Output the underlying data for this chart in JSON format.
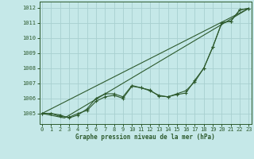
{
  "background_color": "#c5e8e8",
  "grid_color": "#a8d0d0",
  "line_color": "#2d5a2d",
  "text_color": "#2d5a2d",
  "xlabel": "Graphe pression niveau de la mer (hPa)",
  "xlim": [
    -0.3,
    23.3
  ],
  "ylim": [
    1004.3,
    1012.4
  ],
  "yticks": [
    1005,
    1006,
    1007,
    1008,
    1009,
    1010,
    1011,
    1012
  ],
  "xticks": [
    0,
    1,
    2,
    3,
    4,
    5,
    6,
    7,
    8,
    9,
    10,
    11,
    12,
    13,
    14,
    15,
    16,
    17,
    18,
    19,
    20,
    21,
    22,
    23
  ],
  "series1_x": [
    0,
    1,
    2,
    3,
    4,
    5,
    6,
    7,
    8,
    9,
    10,
    11,
    12,
    13,
    14,
    15,
    16,
    17,
    18,
    19,
    20,
    21,
    22,
    23
  ],
  "series1_y": [
    1005.0,
    1005.0,
    1004.8,
    1004.75,
    1005.0,
    1005.2,
    1005.8,
    1006.1,
    1006.2,
    1006.0,
    1006.8,
    1006.7,
    1006.5,
    1006.2,
    1006.1,
    1006.3,
    1006.5,
    1007.1,
    1008.0,
    1009.4,
    1011.0,
    1011.1,
    1011.85,
    1011.95
  ],
  "series2_x": [
    0,
    1,
    2,
    3,
    4,
    5,
    6,
    7,
    8,
    9,
    10,
    11,
    12,
    13,
    14,
    15,
    16,
    17,
    18,
    19,
    20,
    21,
    22,
    23
  ],
  "series2_y": [
    1005.0,
    1005.0,
    1004.9,
    1004.7,
    1004.9,
    1005.3,
    1006.0,
    1006.3,
    1006.3,
    1006.1,
    1006.85,
    1006.7,
    1006.55,
    1006.15,
    1006.1,
    1006.25,
    1006.35,
    1007.2,
    1008.0,
    1009.4,
    1011.0,
    1011.1,
    1011.85,
    1011.95
  ],
  "series3_x": [
    0,
    23
  ],
  "series3_y": [
    1005.0,
    1011.95
  ],
  "series4_x": [
    0,
    2.5,
    23
  ],
  "series4_y": [
    1005.0,
    1004.7,
    1011.95
  ]
}
